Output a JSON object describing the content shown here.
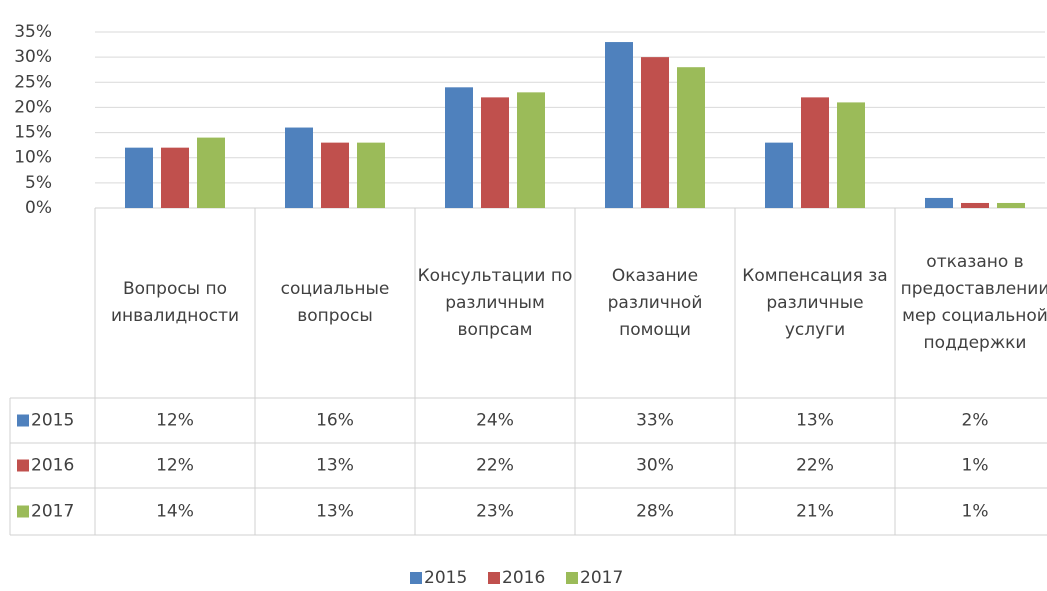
{
  "chart_data": {
    "type": "bar",
    "categories": [
      "Вопросы по инвалидности",
      "социальные вопросы",
      "Консультации по различным вопрсам",
      "Оказание различной помощи",
      "Компенсация за различные услуги",
      "отказано в предоставлении мер социальной поддержки"
    ],
    "series": [
      {
        "name": "2015",
        "color": "#4f81bd",
        "values": [
          12,
          16,
          24,
          33,
          13,
          2
        ],
        "value_labels": [
          "12%",
          "16%",
          "24%",
          "33%",
          "13%",
          "2%"
        ]
      },
      {
        "name": "2016",
        "color": "#c0504d",
        "values": [
          12,
          13,
          22,
          30,
          22,
          1
        ],
        "value_labels": [
          "12%",
          "13%",
          "22%",
          "30%",
          "22%",
          "1%"
        ]
      },
      {
        "name": "2017",
        "color": "#9bbb59",
        "values": [
          14,
          13,
          23,
          28,
          21,
          1
        ],
        "value_labels": [
          "14%",
          "13%",
          "23%",
          "28%",
          "21%",
          "1%"
        ]
      }
    ],
    "ylim": [
      0,
      35
    ],
    "yticks": [
      {
        "value": 0,
        "label": "0%"
      },
      {
        "value": 5,
        "label": "5%"
      },
      {
        "value": 10,
        "label": "10%"
      },
      {
        "value": 15,
        "label": "15%"
      },
      {
        "value": 20,
        "label": "20%"
      },
      {
        "value": 25,
        "label": "25%"
      },
      {
        "value": 30,
        "label": "30%"
      },
      {
        "value": 35,
        "label": "35%"
      }
    ],
    "grid": true,
    "legend": "bottom"
  }
}
